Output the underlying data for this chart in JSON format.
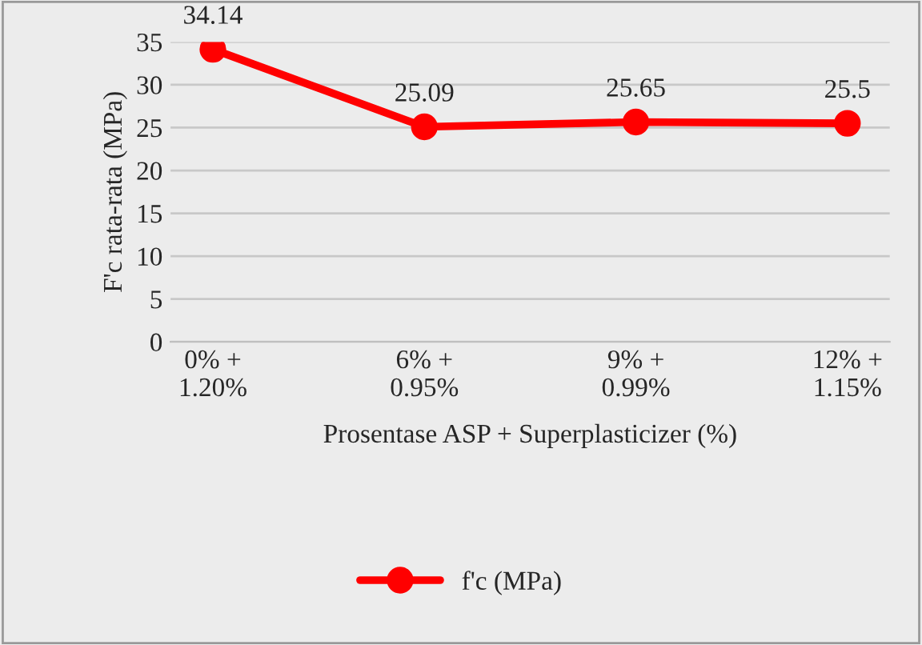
{
  "chart_data": {
    "type": "line",
    "xlabel": "Prosentase ASP + Superplasticizer (%)",
    "ylabel": "F'c rata-rata (MPa)",
    "categories": [
      "0% +\n1.20%",
      "6% +\n0.95%",
      "9% +\n0.99%",
      "12% +\n1.15%"
    ],
    "series": [
      {
        "name": "f'c (MPa)",
        "color": "#ff0000",
        "values": [
          34.14,
          25.09,
          25.65,
          25.5
        ]
      }
    ],
    "ylim": [
      0,
      35
    ],
    "yticks": [
      0,
      5,
      10,
      15,
      20,
      25,
      30,
      35
    ],
    "grid": "y",
    "legend": "bottom",
    "marker": "circle",
    "line_style": "solid",
    "data_labels": true
  }
}
